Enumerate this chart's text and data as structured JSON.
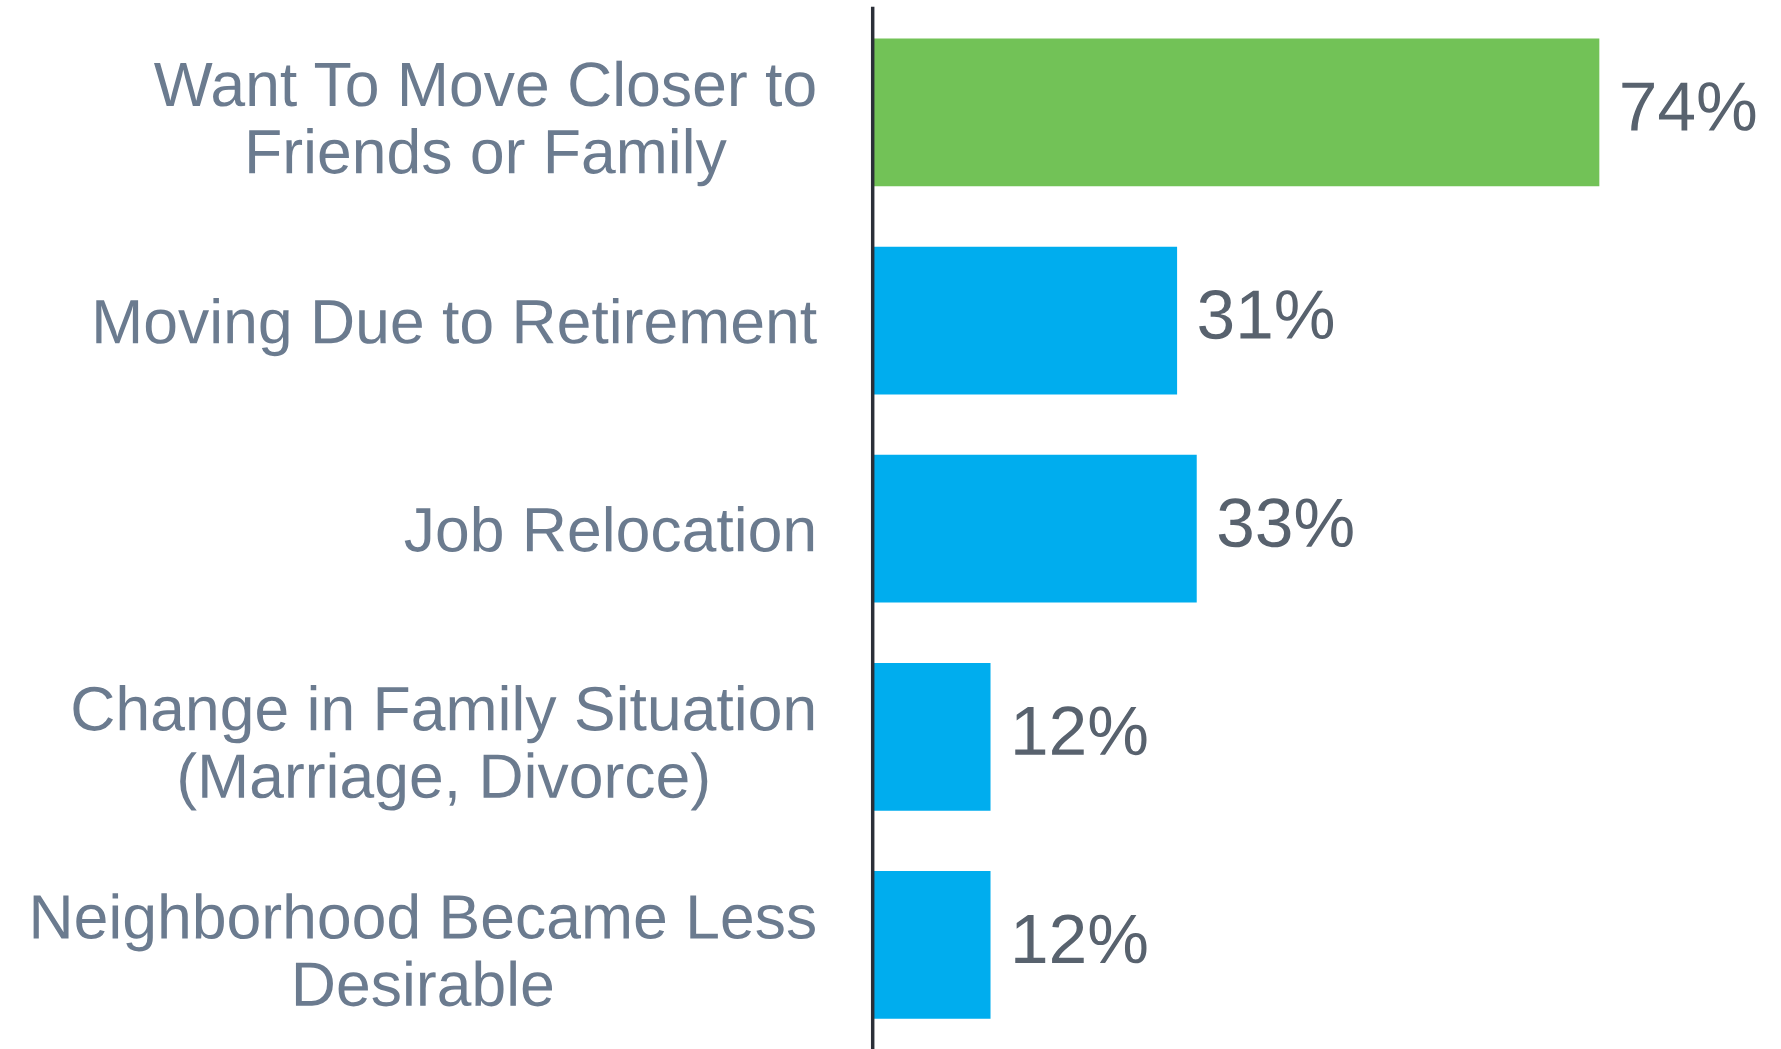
{
  "chart_data": {
    "type": "bar",
    "orientation": "horizontal",
    "categories": [
      "Want To Move Closer to\nFriends or Family",
      "Moving Due to Retirement",
      "Job Relocation",
      "Change in Family Situation\n(Marriage, Divorce)",
      "Neighborhood Became Less\nDesirable"
    ],
    "values": [
      74,
      31,
      33,
      12,
      12
    ],
    "colors": [
      "#72c257",
      "#00adee",
      "#00adee",
      "#00adee",
      "#00adee"
    ],
    "value_labels": [
      "74%",
      "31%",
      "33%",
      "12%",
      "12%"
    ],
    "grid": false,
    "legend": false,
    "tick_labels": "y"
  }
}
